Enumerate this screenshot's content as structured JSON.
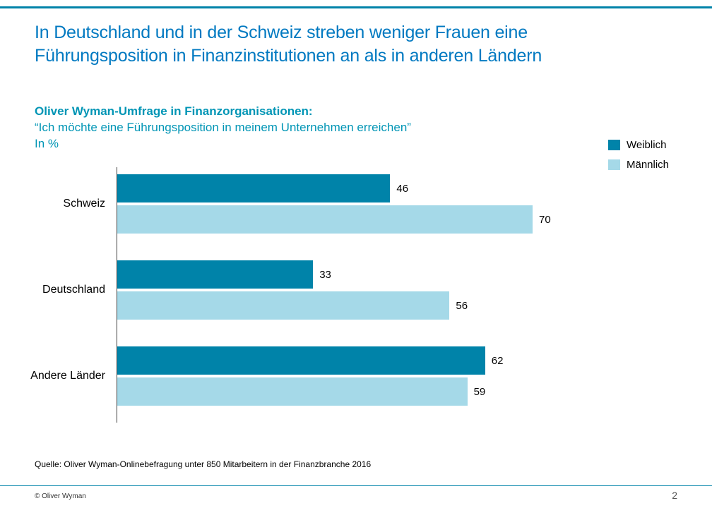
{
  "slide": {
    "title_lines": [
      "In Deutschland und in der Schweiz streben weniger Frauen eine",
      "Führungsposition in Finanzinstitutionen an als in anderen Ländern"
    ],
    "kicker": "Oliver Wyman-Umfrage in Finanzorganisationen:",
    "quote": "“Ich möchte eine Führungsposition in meinem Unternehmen erreichen”",
    "unit": "In %",
    "source": "Quelle: Oliver Wyman-Onlinebefragung unter 850 Mitarbeitern in der Finanzbranche 2016",
    "footer_left": "© Oliver Wyman",
    "page_number": "2"
  },
  "colors": {
    "title_blue": "#0079C1",
    "subtitle_teal": "#0095B5",
    "rule_teal": "#0083A9",
    "bar_dark": "#0083A9",
    "bar_light": "#A5D9E8",
    "axis": "#404040"
  },
  "legend": [
    {
      "label": "Weiblich",
      "color": "#0083A9"
    },
    {
      "label": "Männlich",
      "color": "#A5D9E8"
    }
  ],
  "chart_data": {
    "type": "bar",
    "orientation": "horizontal",
    "title": "Oliver Wyman-Umfrage in Finanzorganisationen: “Ich möchte eine Führungsposition in meinem Unternehmen erreichen”",
    "unit": "%",
    "categories": [
      "Schweiz",
      "Deutschland",
      "Andere Länder"
    ],
    "series": [
      {
        "name": "Weiblich",
        "color": "#0083A9",
        "values": [
          46,
          33,
          62
        ]
      },
      {
        "name": "Männlich",
        "color": "#A5D9E8",
        "values": [
          70,
          56,
          59
        ]
      }
    ],
    "xlim": [
      0,
      80
    ],
    "value_labels": true,
    "grid": false,
    "legend_position": "top-right"
  }
}
